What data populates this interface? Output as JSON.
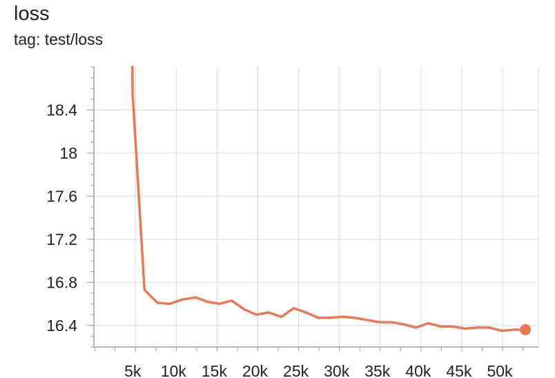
{
  "card": {
    "title": "loss",
    "subtitle": "tag: test/loss"
  },
  "colors": {
    "series": "#ec7752",
    "grid": "#d9d9d9",
    "axis": "#9e9e9e",
    "text": "#212121"
  },
  "chart_data": {
    "type": "line",
    "title": "loss",
    "subtitle": "tag: test/loss",
    "xlabel": "",
    "ylabel": "",
    "xlim": [
      -100,
      54400
    ],
    "ylim": [
      16.2,
      18.8
    ],
    "grid": true,
    "legend": "none",
    "xticks": [
      {
        "value": 5000,
        "label": "5k"
      },
      {
        "value": 10000,
        "label": "10k"
      },
      {
        "value": 15000,
        "label": "15k"
      },
      {
        "value": 20000,
        "label": "20k"
      },
      {
        "value": 25000,
        "label": "25k"
      },
      {
        "value": 30000,
        "label": "30k"
      },
      {
        "value": 35000,
        "label": "35k"
      },
      {
        "value": 40000,
        "label": "40k"
      },
      {
        "value": 45000,
        "label": "45k"
      },
      {
        "value": 50000,
        "label": "50k"
      }
    ],
    "yticks": [
      {
        "value": 16.4,
        "label": "16.4"
      },
      {
        "value": 16.8,
        "label": "16.8"
      },
      {
        "value": 17.2,
        "label": "17.2"
      },
      {
        "value": 17.6,
        "label": "17.6"
      },
      {
        "value": 18,
        "label": "18"
      },
      {
        "value": 18.4,
        "label": "18.4"
      }
    ],
    "series": [
      {
        "x": [
          4620,
          4650,
          6100,
          7700,
          9200,
          10700,
          12400,
          13800,
          15300,
          16800,
          18300,
          19800,
          21300,
          22900,
          24400,
          25900,
          27400,
          28900,
          30400,
          31900,
          33400,
          34900,
          36400,
          37900,
          39400,
          40900,
          42400,
          43900,
          45400,
          46900,
          48400,
          49900,
          51400,
          52800
        ],
        "y": [
          18.8,
          18.55,
          16.73,
          16.61,
          16.6,
          16.64,
          16.66,
          16.62,
          16.6,
          16.63,
          16.55,
          16.5,
          16.52,
          16.48,
          16.56,
          16.52,
          16.47,
          16.47,
          16.48,
          16.47,
          16.45,
          16.43,
          16.43,
          16.41,
          16.38,
          16.42,
          16.39,
          16.39,
          16.37,
          16.38,
          16.38,
          16.35,
          16.36,
          16.36
        ]
      }
    ]
  }
}
